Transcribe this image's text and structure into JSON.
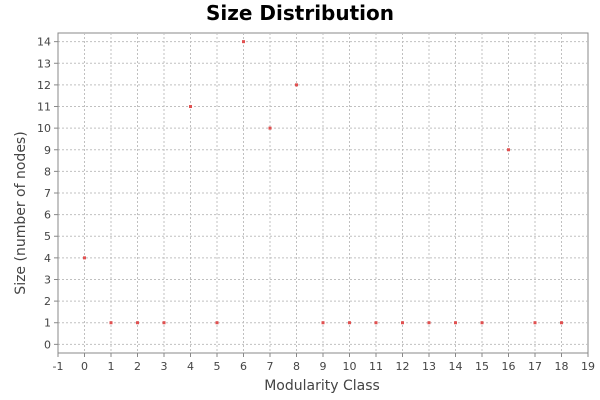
{
  "chart_data": {
    "type": "scatter",
    "title": "Size Distribution",
    "xlabel": "Modularity Class",
    "ylabel": "Size (number of nodes)",
    "xlim": [
      -1,
      19
    ],
    "ylim": [
      -0.4,
      14.4
    ],
    "x_ticks": [
      -1,
      0,
      1,
      2,
      3,
      4,
      5,
      6,
      7,
      8,
      9,
      10,
      11,
      12,
      13,
      14,
      15,
      16,
      17,
      18,
      19
    ],
    "y_ticks": [
      0,
      1,
      2,
      3,
      4,
      5,
      6,
      7,
      8,
      9,
      10,
      11,
      12,
      13,
      14
    ],
    "grid": true,
    "point_color": "#e05050",
    "points": [
      {
        "x": 0,
        "y": 4
      },
      {
        "x": 1,
        "y": 1
      },
      {
        "x": 2,
        "y": 1
      },
      {
        "x": 3,
        "y": 1
      },
      {
        "x": 4,
        "y": 11
      },
      {
        "x": 5,
        "y": 1
      },
      {
        "x": 6,
        "y": 14
      },
      {
        "x": 7,
        "y": 10
      },
      {
        "x": 8,
        "y": 12
      },
      {
        "x": 9,
        "y": 1
      },
      {
        "x": 10,
        "y": 1
      },
      {
        "x": 11,
        "y": 1
      },
      {
        "x": 12,
        "y": 1
      },
      {
        "x": 13,
        "y": 1
      },
      {
        "x": 14,
        "y": 1
      },
      {
        "x": 15,
        "y": 1
      },
      {
        "x": 16,
        "y": 9
      },
      {
        "x": 17,
        "y": 1
      },
      {
        "x": 18,
        "y": 1
      }
    ]
  }
}
